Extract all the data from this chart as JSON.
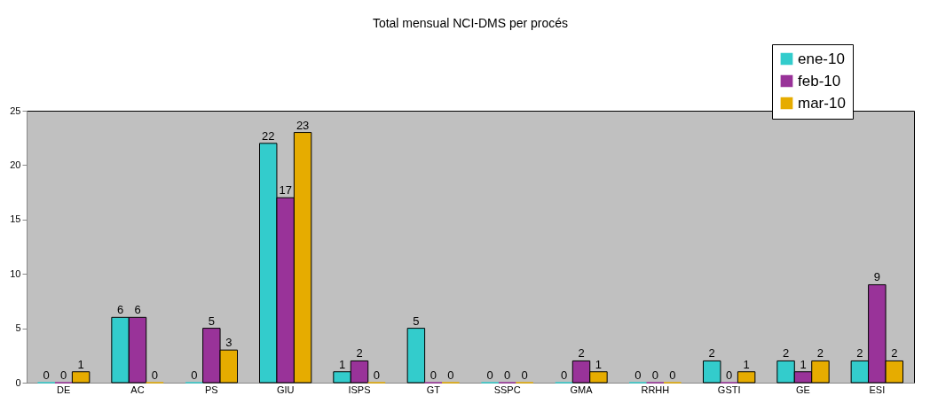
{
  "chart_data": {
    "type": "bar",
    "title": "Total mensual NCI-DMS per procés",
    "categories": [
      "DE",
      "AC",
      "PS",
      "GIU",
      "ISPS",
      "GT",
      "SSPC",
      "GMA",
      "RRHH",
      "GSTI",
      "GE",
      "ESI"
    ],
    "series": [
      {
        "name": "ene-10",
        "color": "#33cccc",
        "values": [
          0,
          6,
          0,
          22,
          1,
          5,
          0,
          0,
          0,
          2,
          2,
          2
        ]
      },
      {
        "name": "feb-10",
        "color": "#993399",
        "values": [
          0,
          6,
          5,
          17,
          2,
          0,
          0,
          2,
          0,
          0,
          1,
          9
        ]
      },
      {
        "name": "mar-10",
        "color": "#e6ac00",
        "values": [
          1,
          0,
          3,
          23,
          0,
          0,
          0,
          1,
          0,
          1,
          2,
          2
        ]
      }
    ],
    "ylim": [
      0,
      25
    ],
    "yticks": [
      0,
      5,
      10,
      15,
      20,
      25
    ],
    "grid": false,
    "legend": "top right",
    "data_labels": true
  }
}
